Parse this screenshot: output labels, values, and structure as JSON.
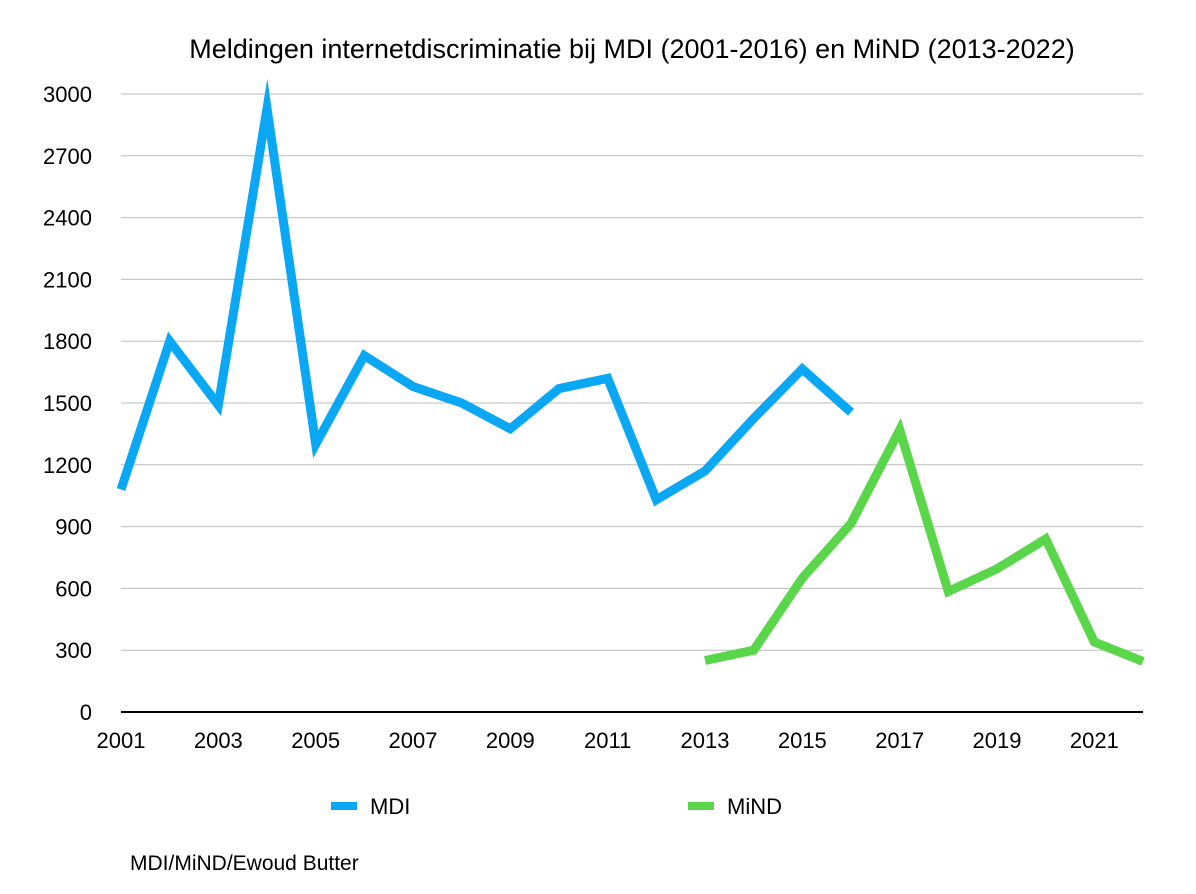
{
  "chart_data": {
    "type": "line",
    "title": "Meldingen internetdiscriminatie bij MDI (2001-2016) en MiND (2013-2022)",
    "xlabel": "",
    "ylabel": "",
    "x_range": [
      2001,
      2022
    ],
    "x_ticks": [
      "2001",
      "2003",
      "2005",
      "2007",
      "2009",
      "2011",
      "2013",
      "2015",
      "2017",
      "2019",
      "2021"
    ],
    "ylim": [
      0,
      3000
    ],
    "y_ticks": [
      "0",
      "300",
      "600",
      "900",
      "1200",
      "1500",
      "1800",
      "2100",
      "2400",
      "2700",
      "3000"
    ],
    "grid": true,
    "legend_position": "bottom",
    "series": [
      {
        "name": "MDI",
        "color": "#0AA7F5",
        "x": [
          2001,
          2002,
          2003,
          2004,
          2005,
          2006,
          2007,
          2008,
          2009,
          2010,
          2011,
          2012,
          2013,
          2014,
          2015,
          2016
        ],
        "values": [
          1080,
          1800,
          1490,
          2930,
          1300,
          1730,
          1580,
          1500,
          1375,
          1570,
          1620,
          1030,
          1170,
          1425,
          1665,
          1455
        ]
      },
      {
        "name": "MiND",
        "color": "#5AD64B",
        "x": [
          2013,
          2014,
          2015,
          2016,
          2017,
          2018,
          2019,
          2020,
          2021,
          2022
        ],
        "values": [
          250,
          300,
          650,
          915,
          1370,
          585,
          695,
          840,
          340,
          245
        ]
      }
    ]
  },
  "source": "MDI/MiND/Ewoud Butter"
}
